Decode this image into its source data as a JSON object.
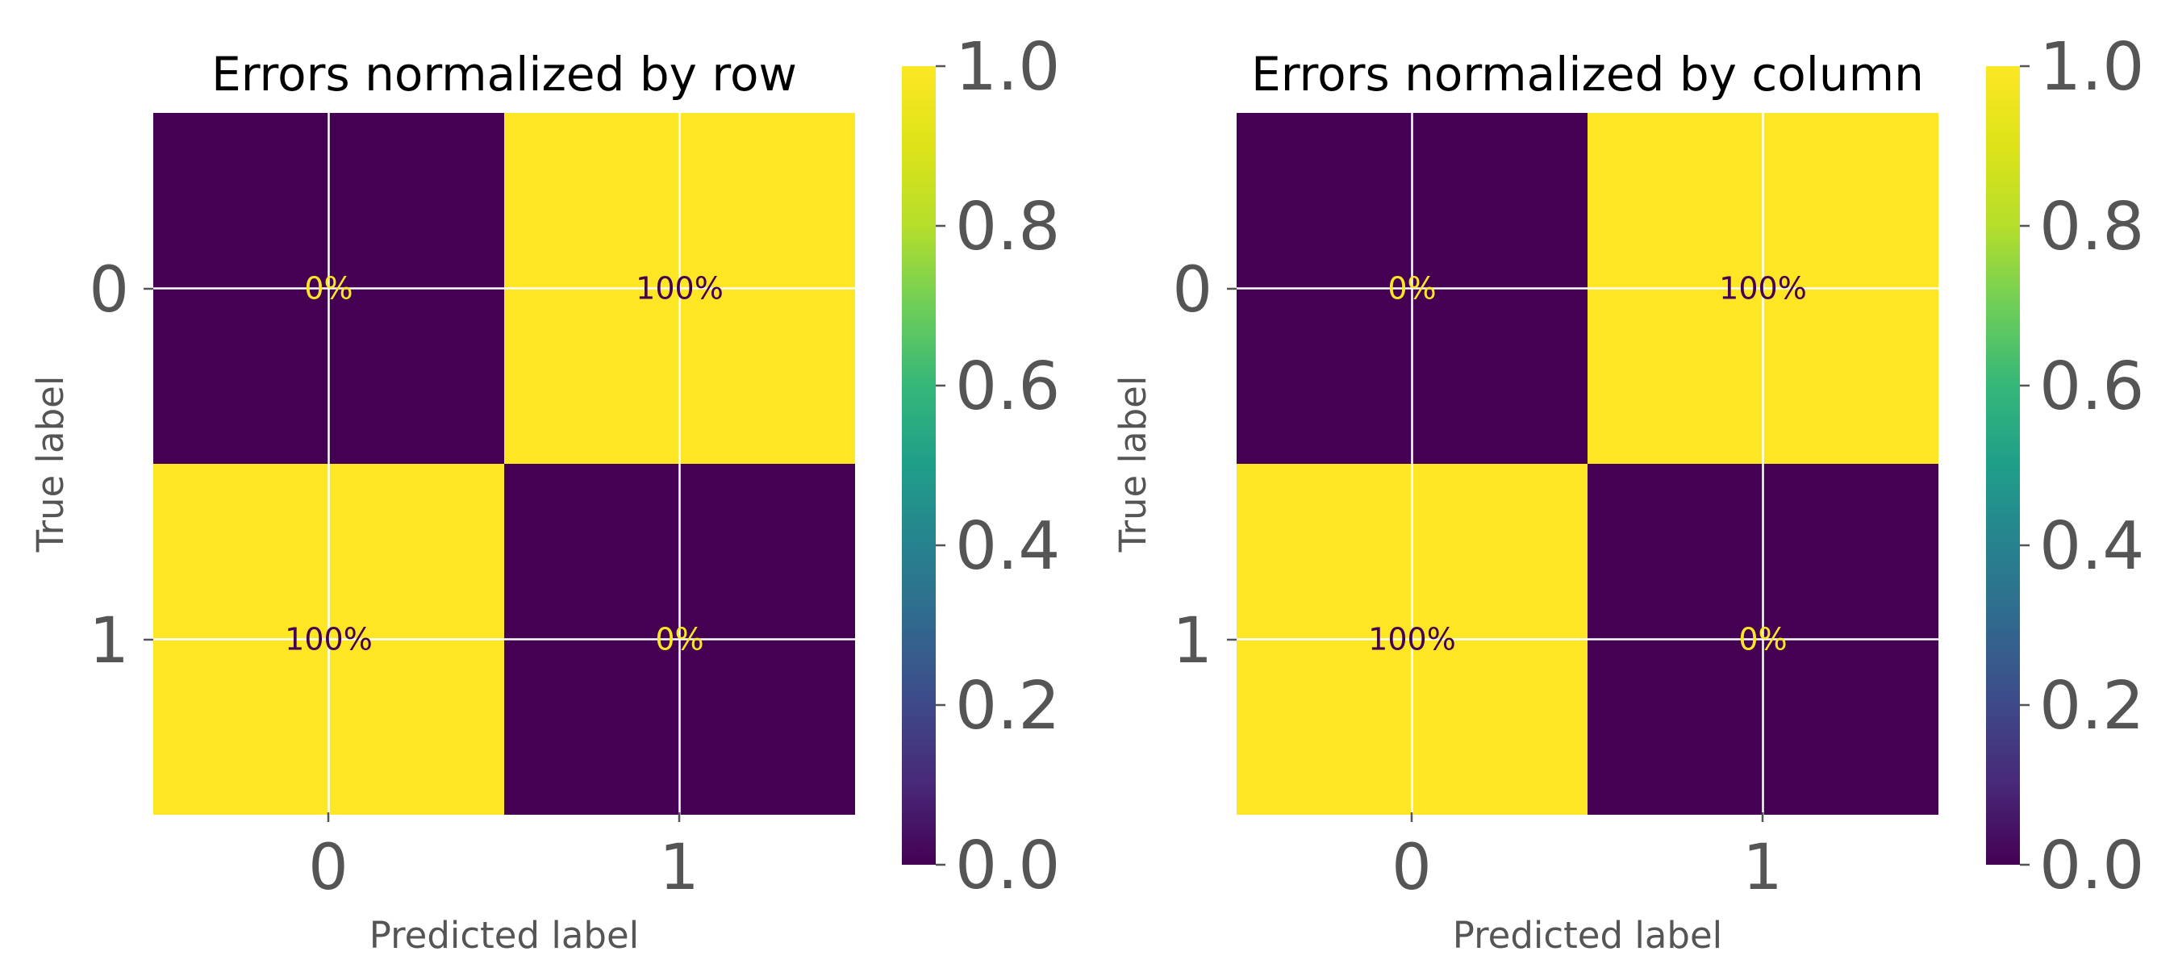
{
  "chart_data": [
    {
      "type": "heatmap",
      "title": "Errors normalized by row",
      "xlabel": "Predicted label",
      "ylabel": "True label",
      "x_categories": [
        "0",
        "1"
      ],
      "y_categories": [
        "0",
        "1"
      ],
      "values": [
        [
          0,
          1
        ],
        [
          1,
          0
        ]
      ],
      "cell_labels": [
        [
          "0%",
          "100%"
        ],
        [
          "100%",
          "0%"
        ]
      ],
      "colorbar": {
        "range": [
          0.0,
          1.0
        ],
        "ticks": [
          "0.0",
          "0.2",
          "0.4",
          "0.6",
          "0.8",
          "1.0"
        ],
        "colormap": "viridis"
      },
      "grid": true
    },
    {
      "type": "heatmap",
      "title": "Errors normalized by column",
      "xlabel": "Predicted label",
      "ylabel": "True label",
      "x_categories": [
        "0",
        "1"
      ],
      "y_categories": [
        "0",
        "1"
      ],
      "values": [
        [
          0,
          1
        ],
        [
          1,
          0
        ]
      ],
      "cell_labels": [
        [
          "0%",
          "100%"
        ],
        [
          "100%",
          "0%"
        ]
      ],
      "colorbar": {
        "range": [
          0.0,
          1.0
        ],
        "ticks": [
          "0.0",
          "0.2",
          "0.4",
          "0.6",
          "0.8",
          "1.0"
        ],
        "colormap": "viridis"
      },
      "grid": true
    }
  ],
  "colors": {
    "viridis_low": "#440154",
    "viridis_high": "#fde725",
    "text_on_dark": "#fde725",
    "text_on_light": "#440154"
  }
}
